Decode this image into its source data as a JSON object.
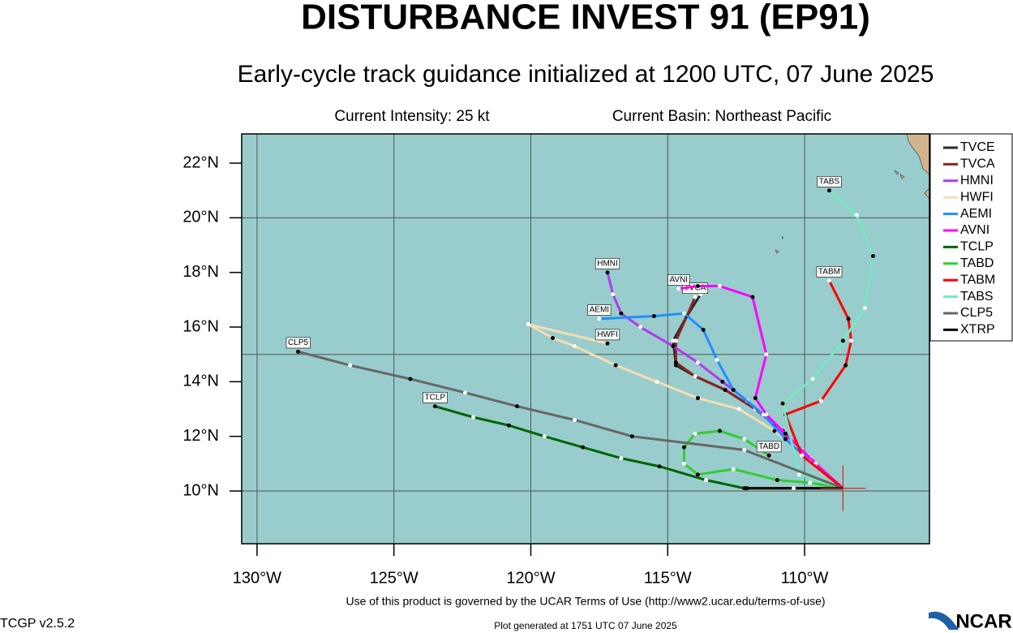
{
  "chart_data": {
    "type": "track",
    "title": "DISTURBANCE INVEST 91 (EP91)",
    "subtitle": "Early-cycle track guidance initialized at 1200 UTC, 07 June 2025",
    "intensity": "Current Intensity: 25 kt",
    "basin": "Current Basin: Northeast Pacific",
    "xlim": [
      -130.56,
      -105.44
    ],
    "ylim": [
      8.07,
      23.07
    ],
    "xticks": [
      {
        "value": -130,
        "label": "130°W"
      },
      {
        "value": -125,
        "label": "125°W"
      },
      {
        "value": -120,
        "label": "120°W"
      },
      {
        "value": -115,
        "label": "115°W"
      },
      {
        "value": -110,
        "label": "110°W"
      }
    ],
    "yticks": [
      {
        "value": 10,
        "label": "10°N"
      },
      {
        "value": 12,
        "label": "12°N"
      },
      {
        "value": 14,
        "label": "14°N"
      },
      {
        "value": 16,
        "label": "16°N"
      },
      {
        "value": 18,
        "label": "18°N"
      },
      {
        "value": 20,
        "label": "20°N"
      },
      {
        "value": 22,
        "label": "22°N"
      }
    ],
    "ygrid": [
      10,
      15,
      20
    ],
    "grid": true,
    "legend": "right",
    "current_position": {
      "lon": -108.6,
      "lat": 10.1
    },
    "series": [
      {
        "name": "TVCE",
        "color": "#2a2a2a",
        "x": [
          -108.6,
          -109.9,
          -110.8,
          -111.8,
          -112.9,
          -114.0,
          -114.7,
          -114.8,
          -114.3,
          -113.8
        ],
        "values": [
          10.1,
          11.3,
          12.2,
          13.0,
          13.7,
          14.2,
          14.6,
          15.5,
          16.4,
          17.2
        ]
      },
      {
        "name": "TVCA",
        "color": "#8b2323",
        "x": [
          -108.6,
          -109.9,
          -110.8,
          -111.8,
          -112.9,
          -114.0,
          -114.7,
          -114.7,
          -114.3,
          -114.0
        ],
        "values": [
          10.1,
          11.3,
          12.2,
          13.0,
          13.7,
          14.2,
          14.7,
          15.5,
          16.4,
          17.1
        ]
      },
      {
        "name": "HMNI",
        "color": "#b23aee",
        "x": [
          -108.6,
          -110.1,
          -111.1,
          -112.1,
          -113.0,
          -113.9,
          -114.8,
          -116.0,
          -116.7,
          -117.0,
          -117.2
        ],
        "values": [
          10.1,
          11.5,
          12.4,
          13.3,
          14.0,
          14.7,
          15.3,
          16.0,
          16.5,
          17.2,
          18.0
        ]
      },
      {
        "name": "HWFI",
        "color": "#f5deb3",
        "x": [
          -108.6,
          -109.8,
          -111.1,
          -112.4,
          -113.9,
          -115.4,
          -116.9,
          -118.4,
          -119.2,
          -120.1,
          -117.2
        ],
        "values": [
          10.1,
          11.2,
          12.2,
          13.0,
          13.4,
          14.0,
          14.6,
          15.3,
          15.6,
          16.1,
          15.4
        ]
      },
      {
        "name": "AEMI",
        "color": "#1e90ff",
        "x": [
          -108.6,
          -109.8,
          -110.7,
          -111.5,
          -112.6,
          -113.2,
          -113.7,
          -114.4,
          -115.5,
          -117.5
        ],
        "values": [
          10.1,
          11.1,
          11.9,
          12.8,
          13.7,
          14.8,
          15.9,
          16.5,
          16.4,
          16.3
        ]
      },
      {
        "name": "AVNI",
        "color": "#ff00ff",
        "x": [
          -108.6,
          -109.6,
          -110.7,
          -111.4,
          -111.8,
          -111.4,
          -111.9,
          -113.1,
          -113.9,
          -114.6
        ],
        "values": [
          10.1,
          11.0,
          12.1,
          12.8,
          13.4,
          15.0,
          17.1,
          17.5,
          17.5,
          17.4
        ]
      },
      {
        "name": "TCLP",
        "color": "#006400",
        "x": [
          -108.6,
          -110.4,
          -112.2,
          -113.6,
          -115.3,
          -116.7,
          -118.1,
          -119.5,
          -120.8,
          -122.1,
          -123.5
        ],
        "values": [
          10.1,
          10.1,
          10.1,
          10.4,
          10.9,
          11.2,
          11.6,
          12.0,
          12.4,
          12.7,
          13.1
        ]
      },
      {
        "name": "TABD",
        "color": "#32cd32",
        "x": [
          -108.6,
          -109.8,
          -111.0,
          -112.6,
          -113.9,
          -114.4,
          -114.4,
          -114.0,
          -113.1,
          -112.2,
          -111.3
        ],
        "values": [
          10.1,
          10.3,
          10.4,
          10.8,
          10.6,
          11.0,
          11.6,
          12.1,
          12.2,
          11.9,
          11.3
        ]
      },
      {
        "name": "TABM",
        "color": "#ff0000",
        "x": [
          -108.6,
          -110.1,
          -110.7,
          -109.4,
          -108.5,
          -108.3,
          -108.4,
          -109.1
        ],
        "values": [
          10.1,
          11.3,
          12.8,
          13.3,
          14.6,
          15.5,
          16.3,
          17.7
        ]
      },
      {
        "name": "TABS",
        "color": "#76e8c0",
        "x": [
          -108.6,
          -110.2,
          -110.8,
          -109.7,
          -108.6,
          -107.8,
          -107.5,
          -108.1,
          -109.1
        ],
        "values": [
          10.1,
          10.6,
          13.2,
          14.1,
          15.5,
          16.7,
          18.6,
          20.1,
          21.0
        ]
      },
      {
        "name": "CLP5",
        "color": "#666666",
        "x": [
          -108.6,
          -112.2,
          -116.3,
          -118.4,
          -120.5,
          -122.4,
          -124.4,
          -126.6,
          -128.5
        ],
        "values": [
          10.1,
          11.5,
          12.0,
          12.6,
          13.1,
          13.6,
          14.1,
          14.6,
          15.1
        ]
      },
      {
        "name": "XTRP",
        "color": "#000000",
        "x": [
          -108.6,
          -110.4,
          -112.1
        ],
        "values": [
          10.1,
          10.1,
          10.1
        ]
      }
    ]
  },
  "footer": {
    "terms": "Use of this product is governed by the UCAR Terms of Use (http://www2.ucar.edu/terms-of-use)",
    "version": "TCGP v2.5.2",
    "generated": "Plot generated at 1751 UTC   07 June 2025",
    "logo": "NCAR"
  }
}
